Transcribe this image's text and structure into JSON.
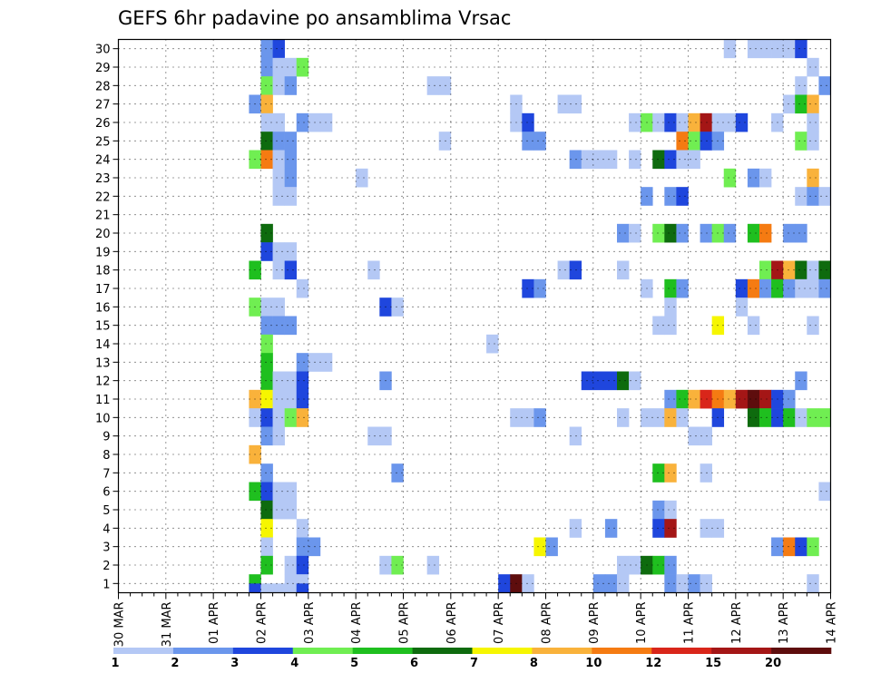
{
  "chart_data": {
    "type": "heatmap",
    "title": "GEFS 6hr padavine po ansamblima Vrsac",
    "xlabel": "",
    "ylabel": "",
    "x_tick_labels": [
      "30 MAR",
      "31 MAR",
      "01 APR",
      "02 APR",
      "03 APR",
      "04 APR",
      "05 APR",
      "06 APR",
      "07 APR",
      "08 APR",
      "09 APR",
      "10 APR",
      "11 APR",
      "12 APR",
      "13 APR",
      "14 APR"
    ],
    "y_tick_labels": [
      "1",
      "2",
      "3",
      "4",
      "5",
      "6",
      "7",
      "8",
      "9",
      "10",
      "11",
      "12",
      "13",
      "14",
      "15",
      "16",
      "17",
      "18",
      "19",
      "20",
      "21",
      "22",
      "23",
      "24",
      "25",
      "26",
      "27",
      "28",
      "29",
      "30"
    ],
    "xlim": [
      0,
      60
    ],
    "ylim": [
      0.5,
      30.5
    ],
    "grid": true,
    "steps_per_day": 4,
    "levels": [
      "1",
      "2",
      "3",
      "4",
      "5",
      "6",
      "7",
      "8",
      "10",
      "12",
      "15",
      "20"
    ],
    "colors": [
      "#b4c8f5",
      "#6b96ec",
      "#1f46dd",
      "#70ee52",
      "#1fbf1f",
      "#0e6b0e",
      "#f6f600",
      "#f9b23b",
      "#f57b12",
      "#d9261a",
      "#a41616",
      "#5e0d0d"
    ],
    "cells": [
      [
        12,
        30,
        2
      ],
      [
        13,
        30,
        3
      ],
      [
        51,
        30,
        1
      ],
      [
        53,
        30,
        1
      ],
      [
        54,
        30,
        1
      ],
      [
        55,
        30,
        1
      ],
      [
        56,
        30,
        1
      ],
      [
        57,
        30,
        3
      ],
      [
        12,
        29,
        2
      ],
      [
        13,
        29,
        1
      ],
      [
        14,
        29,
        1
      ],
      [
        15,
        29,
        4
      ],
      [
        58,
        29,
        1
      ],
      [
        12,
        28,
        4
      ],
      [
        13,
        28,
        1
      ],
      [
        14,
        28,
        2
      ],
      [
        26,
        28,
        1
      ],
      [
        27,
        28,
        1
      ],
      [
        57,
        28,
        1
      ],
      [
        59,
        28,
        2
      ],
      [
        11,
        27,
        2
      ],
      [
        12,
        27,
        8
      ],
      [
        33,
        27,
        1
      ],
      [
        37,
        27,
        1
      ],
      [
        38,
        27,
        1
      ],
      [
        56,
        27,
        1
      ],
      [
        57,
        27,
        5
      ],
      [
        58,
        27,
        8
      ],
      [
        12,
        26,
        1
      ],
      [
        13,
        26,
        1
      ],
      [
        15,
        26,
        2
      ],
      [
        16,
        26,
        1
      ],
      [
        17,
        26,
        1
      ],
      [
        33,
        26,
        1
      ],
      [
        34,
        26,
        3
      ],
      [
        43,
        26,
        1
      ],
      [
        44,
        26,
        4
      ],
      [
        45,
        26,
        1
      ],
      [
        46,
        26,
        3
      ],
      [
        47,
        26,
        1
      ],
      [
        48,
        26,
        8
      ],
      [
        49,
        26,
        11
      ],
      [
        50,
        26,
        1
      ],
      [
        51,
        26,
        1
      ],
      [
        52,
        26,
        3
      ],
      [
        55,
        26,
        1
      ],
      [
        58,
        26,
        1
      ],
      [
        12,
        25,
        6
      ],
      [
        13,
        25,
        2
      ],
      [
        14,
        25,
        2
      ],
      [
        27,
        25,
        1
      ],
      [
        34,
        25,
        2
      ],
      [
        35,
        25,
        2
      ],
      [
        47,
        25,
        9
      ],
      [
        48,
        25,
        4
      ],
      [
        49,
        25,
        3
      ],
      [
        50,
        25,
        2
      ],
      [
        57,
        25,
        4
      ],
      [
        58,
        25,
        1
      ],
      [
        11,
        24,
        4
      ],
      [
        12,
        24,
        9
      ],
      [
        13,
        24,
        1
      ],
      [
        14,
        24,
        2
      ],
      [
        38,
        24,
        2
      ],
      [
        39,
        24,
        1
      ],
      [
        40,
        24,
        1
      ],
      [
        41,
        24,
        1
      ],
      [
        43,
        24,
        1
      ],
      [
        45,
        24,
        6
      ],
      [
        46,
        24,
        3
      ],
      [
        47,
        24,
        1
      ],
      [
        48,
        24,
        1
      ],
      [
        13,
        23,
        1
      ],
      [
        14,
        23,
        2
      ],
      [
        20,
        23,
        1
      ],
      [
        51,
        23,
        4
      ],
      [
        53,
        23,
        2
      ],
      [
        54,
        23,
        1
      ],
      [
        58,
        23,
        8
      ],
      [
        13,
        22,
        1
      ],
      [
        14,
        22,
        1
      ],
      [
        44,
        22,
        2
      ],
      [
        46,
        22,
        2
      ],
      [
        47,
        22,
        3
      ],
      [
        57,
        22,
        1
      ],
      [
        58,
        22,
        2
      ],
      [
        59,
        22,
        1
      ],
      [
        12,
        20,
        6
      ],
      [
        42,
        20,
        2
      ],
      [
        43,
        20,
        1
      ],
      [
        45,
        20,
        4
      ],
      [
        46,
        20,
        6
      ],
      [
        47,
        20,
        2
      ],
      [
        49,
        20,
        2
      ],
      [
        50,
        20,
        4
      ],
      [
        51,
        20,
        2
      ],
      [
        53,
        20,
        5
      ],
      [
        54,
        20,
        9
      ],
      [
        56,
        20,
        2
      ],
      [
        57,
        20,
        2
      ],
      [
        12,
        19,
        3
      ],
      [
        13,
        19,
        1
      ],
      [
        14,
        19,
        1
      ],
      [
        11,
        18,
        5
      ],
      [
        13,
        18,
        1
      ],
      [
        14,
        18,
        3
      ],
      [
        21,
        18,
        1
      ],
      [
        37,
        18,
        1
      ],
      [
        38,
        18,
        3
      ],
      [
        42,
        18,
        1
      ],
      [
        54,
        18,
        4
      ],
      [
        55,
        18,
        11
      ],
      [
        56,
        18,
        8
      ],
      [
        57,
        18,
        6
      ],
      [
        58,
        18,
        1
      ],
      [
        59,
        18,
        6
      ],
      [
        15,
        17,
        1
      ],
      [
        34,
        17,
        3
      ],
      [
        35,
        17,
        2
      ],
      [
        44,
        17,
        1
      ],
      [
        46,
        17,
        5
      ],
      [
        47,
        17,
        2
      ],
      [
        52,
        17,
        3
      ],
      [
        53,
        17,
        9
      ],
      [
        54,
        17,
        2
      ],
      [
        55,
        17,
        5
      ],
      [
        56,
        17,
        2
      ],
      [
        57,
        17,
        1
      ],
      [
        58,
        17,
        1
      ],
      [
        59,
        17,
        2
      ],
      [
        11,
        16,
        4
      ],
      [
        12,
        16,
        1
      ],
      [
        13,
        16,
        1
      ],
      [
        22,
        16,
        3
      ],
      [
        23,
        16,
        1
      ],
      [
        46,
        16,
        1
      ],
      [
        52,
        16,
        1
      ],
      [
        12,
        15,
        2
      ],
      [
        13,
        15,
        2
      ],
      [
        14,
        15,
        2
      ],
      [
        45,
        15,
        1
      ],
      [
        46,
        15,
        1
      ],
      [
        50,
        15,
        7
      ],
      [
        53,
        15,
        1
      ],
      [
        58,
        15,
        1
      ],
      [
        12,
        14,
        4
      ],
      [
        31,
        14,
        1
      ],
      [
        12,
        13,
        5
      ],
      [
        15,
        13,
        2
      ],
      [
        16,
        13,
        1
      ],
      [
        17,
        13,
        1
      ],
      [
        12,
        12,
        5
      ],
      [
        13,
        12,
        1
      ],
      [
        14,
        12,
        1
      ],
      [
        15,
        12,
        3
      ],
      [
        22,
        12,
        2
      ],
      [
        39,
        12,
        3
      ],
      [
        40,
        12,
        3
      ],
      [
        41,
        12,
        3
      ],
      [
        42,
        12,
        6
      ],
      [
        43,
        12,
        1
      ],
      [
        57,
        12,
        2
      ],
      [
        11,
        11,
        8
      ],
      [
        12,
        11,
        7
      ],
      [
        13,
        11,
        1
      ],
      [
        14,
        11,
        1
      ],
      [
        15,
        11,
        3
      ],
      [
        46,
        11,
        2
      ],
      [
        47,
        11,
        5
      ],
      [
        48,
        11,
        8
      ],
      [
        49,
        11,
        10
      ],
      [
        50,
        11,
        9
      ],
      [
        51,
        11,
        8
      ],
      [
        52,
        11,
        11
      ],
      [
        53,
        11,
        12
      ],
      [
        54,
        11,
        11
      ],
      [
        55,
        11,
        3
      ],
      [
        56,
        11,
        2
      ],
      [
        11,
        10,
        1
      ],
      [
        12,
        10,
        3
      ],
      [
        13,
        10,
        1
      ],
      [
        14,
        10,
        4
      ],
      [
        15,
        10,
        8
      ],
      [
        33,
        10,
        1
      ],
      [
        34,
        10,
        1
      ],
      [
        35,
        10,
        2
      ],
      [
        42,
        10,
        1
      ],
      [
        44,
        10,
        1
      ],
      [
        45,
        10,
        1
      ],
      [
        46,
        10,
        8
      ],
      [
        47,
        10,
        1
      ],
      [
        50,
        10,
        3
      ],
      [
        53,
        10,
        6
      ],
      [
        54,
        10,
        5
      ],
      [
        55,
        10,
        3
      ],
      [
        56,
        10,
        5
      ],
      [
        57,
        10,
        1
      ],
      [
        58,
        10,
        4
      ],
      [
        59,
        10,
        4
      ],
      [
        12,
        9,
        2
      ],
      [
        13,
        9,
        1
      ],
      [
        21,
        9,
        1
      ],
      [
        22,
        9,
        1
      ],
      [
        38,
        9,
        1
      ],
      [
        48,
        9,
        1
      ],
      [
        49,
        9,
        1
      ],
      [
        11,
        8,
        8
      ],
      [
        12,
        7,
        2
      ],
      [
        23,
        7,
        2
      ],
      [
        45,
        7,
        5
      ],
      [
        46,
        7,
        8
      ],
      [
        49,
        7,
        1
      ],
      [
        11,
        6,
        5
      ],
      [
        12,
        6,
        3
      ],
      [
        13,
        6,
        1
      ],
      [
        14,
        6,
        1
      ],
      [
        59,
        6,
        1
      ],
      [
        12,
        5,
        6
      ],
      [
        13,
        5,
        1
      ],
      [
        14,
        5,
        1
      ],
      [
        45,
        5,
        2
      ],
      [
        46,
        5,
        1
      ],
      [
        12,
        4,
        7
      ],
      [
        15,
        4,
        1
      ],
      [
        38,
        4,
        1
      ],
      [
        41,
        4,
        2
      ],
      [
        45,
        4,
        3
      ],
      [
        46,
        4,
        11
      ],
      [
        49,
        4,
        1
      ],
      [
        50,
        4,
        1
      ],
      [
        12,
        3,
        1
      ],
      [
        15,
        3,
        2
      ],
      [
        16,
        3,
        2
      ],
      [
        35,
        3,
        7
      ],
      [
        36,
        3,
        2
      ],
      [
        55,
        3,
        2
      ],
      [
        56,
        3,
        9
      ],
      [
        57,
        3,
        3
      ],
      [
        58,
        3,
        4
      ],
      [
        12,
        2,
        5
      ],
      [
        14,
        2,
        1
      ],
      [
        15,
        2,
        3
      ],
      [
        22,
        2,
        1
      ],
      [
        23,
        2,
        4
      ],
      [
        26,
        2,
        1
      ],
      [
        42,
        2,
        1
      ],
      [
        43,
        2,
        1
      ],
      [
        44,
        2,
        6
      ],
      [
        45,
        2,
        5
      ],
      [
        46,
        2,
        2
      ],
      [
        11,
        1,
        5
      ],
      [
        14,
        1,
        1
      ],
      [
        15,
        1,
        1
      ],
      [
        32,
        1,
        3
      ],
      [
        33,
        1,
        12
      ],
      [
        34,
        1,
        1
      ],
      [
        40,
        1,
        2
      ],
      [
        41,
        1,
        2
      ],
      [
        42,
        1,
        1
      ],
      [
        46,
        1,
        2
      ],
      [
        47,
        1,
        1
      ],
      [
        48,
        1,
        2
      ],
      [
        49,
        1,
        1
      ],
      [
        58,
        1,
        1
      ],
      [
        11,
        0.5,
        3
      ],
      [
        12,
        0.5,
        1
      ],
      [
        13,
        0.5,
        1
      ],
      [
        14,
        0.5,
        1
      ],
      [
        15,
        0.5,
        3
      ]
    ]
  }
}
